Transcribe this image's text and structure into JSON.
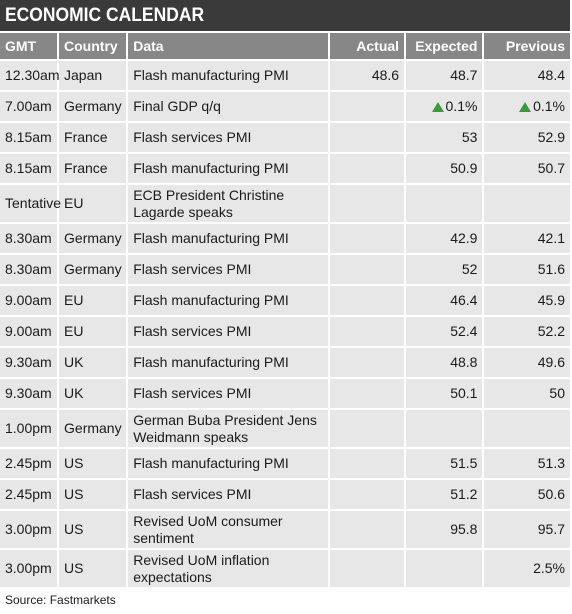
{
  "title": "ECONOMIC CALENDAR",
  "columns": [
    "GMT",
    "Country",
    "Data",
    "Actual",
    "Expected",
    "Previous"
  ],
  "up_color": "#3a9b3a",
  "rows": [
    {
      "gmt": "12.30am",
      "country": "Japan",
      "data": "Flash manufacturing PMI",
      "actual": "48.6",
      "expected": "48.7",
      "previous": "48.4",
      "h": 29
    },
    {
      "gmt": "7.00am",
      "country": "Germany",
      "data": "Final GDP q/q",
      "actual": "",
      "expected": "0.1%",
      "previous": "0.1%",
      "expected_icon": "up-arrow-icon",
      "previous_icon": "up-arrow-icon",
      "h": 29
    },
    {
      "gmt": "8.15am",
      "country": "France",
      "data": "Flash services PMI",
      "actual": "",
      "expected": "53",
      "previous": "52.9",
      "h": 29
    },
    {
      "gmt": "8.15am",
      "country": "France",
      "data": "Flash manufacturing PMI",
      "actual": "",
      "expected": "50.9",
      "previous": "50.7",
      "h": 29
    },
    {
      "gmt": "Tentative",
      "country": "EU",
      "data": "ECB President Christine Lagarde speaks",
      "actual": "",
      "expected": "",
      "previous": "",
      "h": 37
    },
    {
      "gmt": "8.30am",
      "country": "Germany",
      "data": "Flash manufacturing PMI",
      "actual": "",
      "expected": "42.9",
      "previous": "42.1",
      "h": 29
    },
    {
      "gmt": "8.30am",
      "country": "Germany",
      "data": "Flash services PMI",
      "actual": "",
      "expected": "52",
      "previous": "51.6",
      "h": 29
    },
    {
      "gmt": "9.00am",
      "country": "EU",
      "data": "Flash manufacturing PMI",
      "actual": "",
      "expected": "46.4",
      "previous": "45.9",
      "h": 29
    },
    {
      "gmt": "9.00am",
      "country": "EU",
      "data": "Flash services PMI",
      "actual": "",
      "expected": "52.4",
      "previous": "52.2",
      "h": 29
    },
    {
      "gmt": "9.30am",
      "country": "UK",
      "data": "Flash manufacturing PMI",
      "actual": "",
      "expected": "48.8",
      "previous": "49.6",
      "h": 29
    },
    {
      "gmt": "9.30am",
      "country": "UK",
      "data": "Flash services PMI",
      "actual": "",
      "expected": "50.1",
      "previous": "50",
      "h": 29
    },
    {
      "gmt": "1.00pm",
      "country": "Germany",
      "data": "German Buba President Jens Weidmann speaks",
      "actual": "",
      "expected": "",
      "previous": "",
      "h": 37
    },
    {
      "gmt": "2.45pm",
      "country": "US",
      "data": "Flash manufacturing PMI",
      "actual": "",
      "expected": "51.5",
      "previous": "51.3",
      "h": 29
    },
    {
      "gmt": "2.45pm",
      "country": "US",
      "data": "Flash services PMI",
      "actual": "",
      "expected": "51.2",
      "previous": "50.6",
      "h": 29
    },
    {
      "gmt": "3.00pm",
      "country": "US",
      "data": "Revised UoM consumer sentiment",
      "actual": "",
      "expected": "95.8",
      "previous": "95.7",
      "h": 37
    },
    {
      "gmt": "3.00pm",
      "country": "US",
      "data": "Revised UoM inflation expectations",
      "actual": "",
      "expected": "",
      "previous": "2.5%",
      "h": 37
    }
  ],
  "source": "Source: Fastmarkets"
}
